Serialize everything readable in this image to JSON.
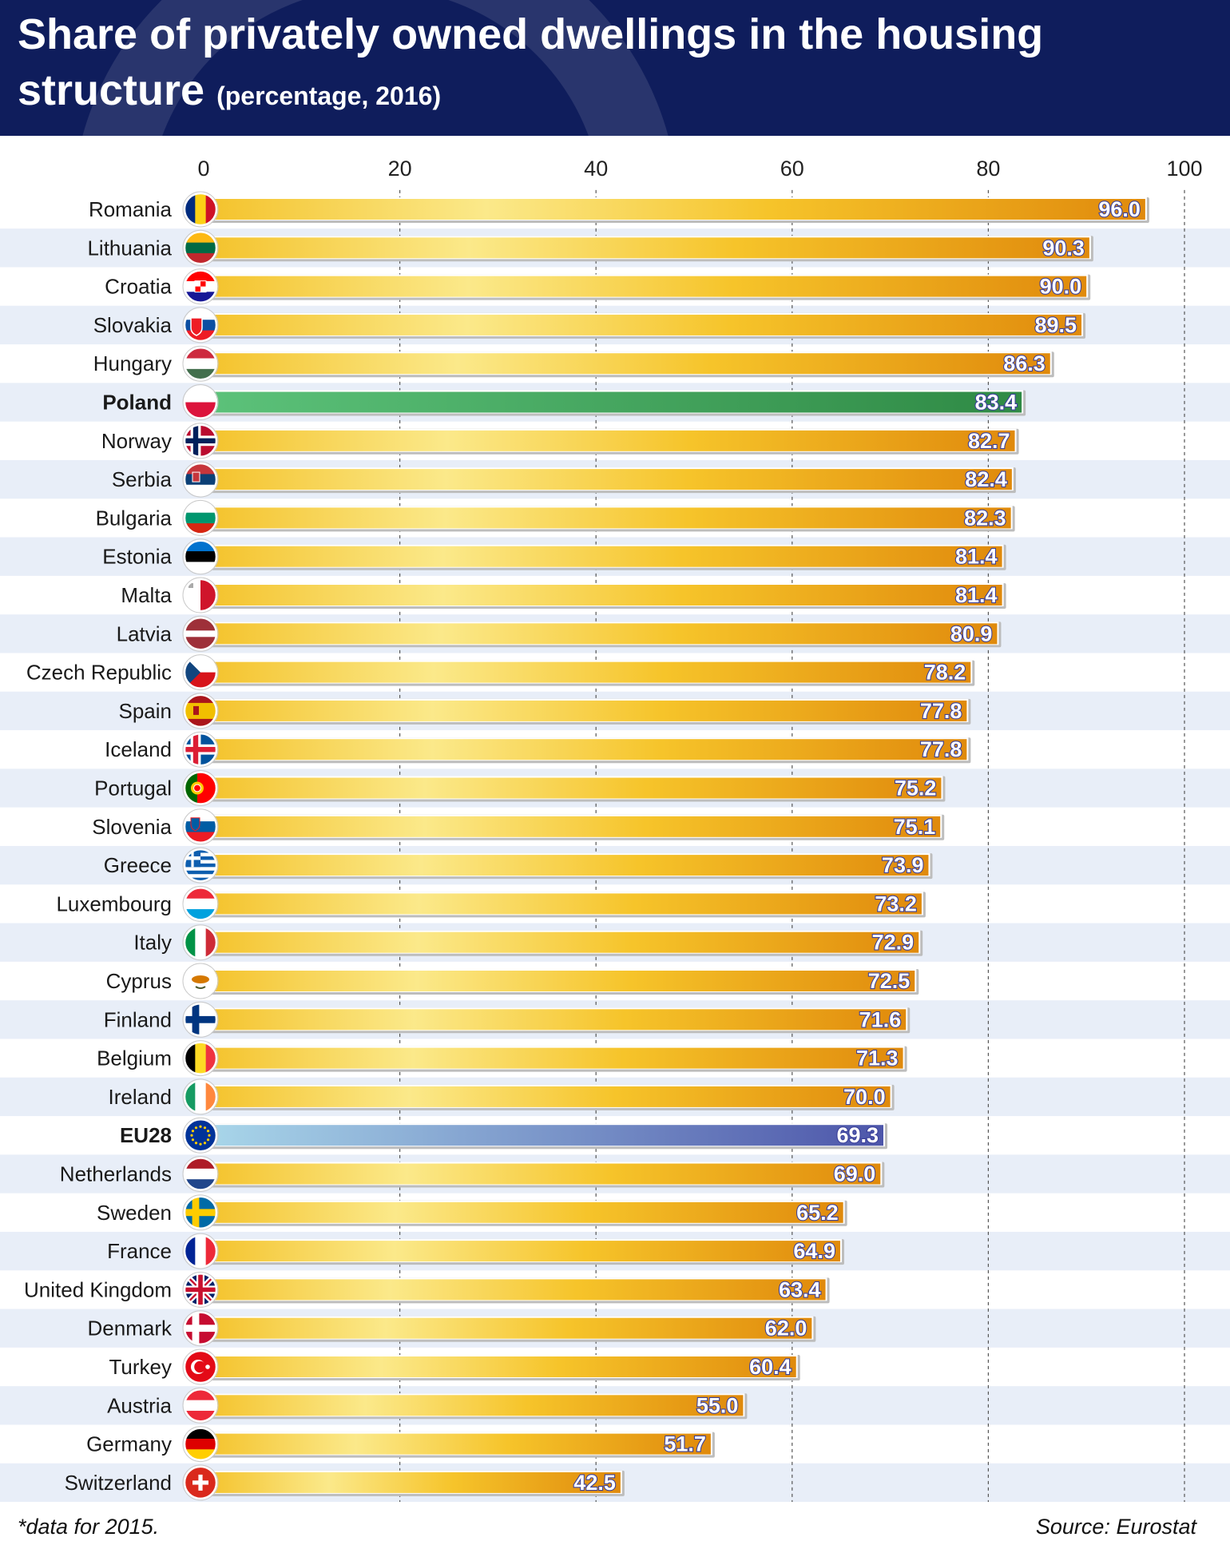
{
  "header": {
    "title": "Share of privately owned dwellings in the housing structure",
    "subtitle": "(percentage, 2016)"
  },
  "footer": {
    "note": "*data for 2015.",
    "source": "Source: Eurostat"
  },
  "colors": {
    "header_bg": "#0f1d5c",
    "bar_light": "#fbe98a",
    "bar_mid": "#f6c42a",
    "bar_dark": "#e08a0c",
    "highlight_poland": "#3a9e52",
    "highlight_eu": "#5a63b0",
    "stripe": "#e8eef8",
    "poland_label": "#3b8c3b",
    "eu_label": "#2f4fb0"
  },
  "chart_data": {
    "type": "bar",
    "orientation": "horizontal",
    "xlim": [
      0,
      100
    ],
    "xticks": [
      0,
      20,
      40,
      60,
      80,
      100
    ],
    "grid": "vertical dashed",
    "categories": [
      "Romania",
      "Lithuania",
      "Croatia",
      "Slovakia",
      "Hungary",
      "Poland",
      "Norway",
      "Serbia",
      "Bulgaria",
      "Estonia",
      "Malta",
      "Latvia",
      "Czech Republic",
      "Spain",
      "Iceland",
      "Portugal",
      "Slovenia",
      "Greece",
      "Luxembourg",
      "Italy",
      "Cyprus",
      "Finland",
      "Belgium",
      "Ireland",
      "EU28",
      "Netherlands",
      "Sweden",
      "France",
      "United Kingdom",
      "Denmark",
      "Turkey",
      "Austria",
      "Germany",
      "Switzerland"
    ],
    "values": [
      96.0,
      90.3,
      90.0,
      89.5,
      86.3,
      83.4,
      82.7,
      82.4,
      82.3,
      81.4,
      81.4,
      80.9,
      78.2,
      77.8,
      77.8,
      75.2,
      75.1,
      73.9,
      73.2,
      72.9,
      72.5,
      71.6,
      71.3,
      70.0,
      69.3,
      69.0,
      65.2,
      64.9,
      63.4,
      62.0,
      60.4,
      55.0,
      51.7,
      42.5
    ],
    "value_labels": [
      "96.0",
      "90.3",
      "90.0",
      "89.5",
      "86.3",
      "83.4",
      "82.7",
      "82.4",
      "82.3",
      "81.4",
      "81.4",
      "80.9",
      "78.2",
      "77.8",
      "77.8",
      "75.2",
      "75.1",
      "73.9",
      "73.2",
      "72.9",
      "72.5",
      "71.6",
      "71.3",
      "70.0",
      "69.3",
      "69.0",
      "65.2",
      "64.9",
      "63.4",
      "62.0",
      "60.4",
      "55.0",
      "51.7",
      "42.5"
    ],
    "highlights": {
      "Poland": "poland",
      "EU28": "eu"
    },
    "flag_icons": [
      "romania-flag-icon",
      "lithuania-flag-icon",
      "croatia-flag-icon",
      "slovakia-flag-icon",
      "hungary-flag-icon",
      "poland-flag-icon",
      "norway-flag-icon",
      "serbia-flag-icon",
      "bulgaria-flag-icon",
      "estonia-flag-icon",
      "malta-flag-icon",
      "latvia-flag-icon",
      "czech-republic-flag-icon",
      "spain-flag-icon",
      "iceland-flag-icon",
      "portugal-flag-icon",
      "slovenia-flag-icon",
      "greece-flag-icon",
      "luxembourg-flag-icon",
      "italy-flag-icon",
      "cyprus-flag-icon",
      "finland-flag-icon",
      "belgium-flag-icon",
      "ireland-flag-icon",
      "eu-flag-icon",
      "netherlands-flag-icon",
      "sweden-flag-icon",
      "france-flag-icon",
      "united-kingdom-flag-icon",
      "denmark-flag-icon",
      "turkey-flag-icon",
      "austria-flag-icon",
      "germany-flag-icon",
      "switzerland-flag-icon"
    ]
  }
}
